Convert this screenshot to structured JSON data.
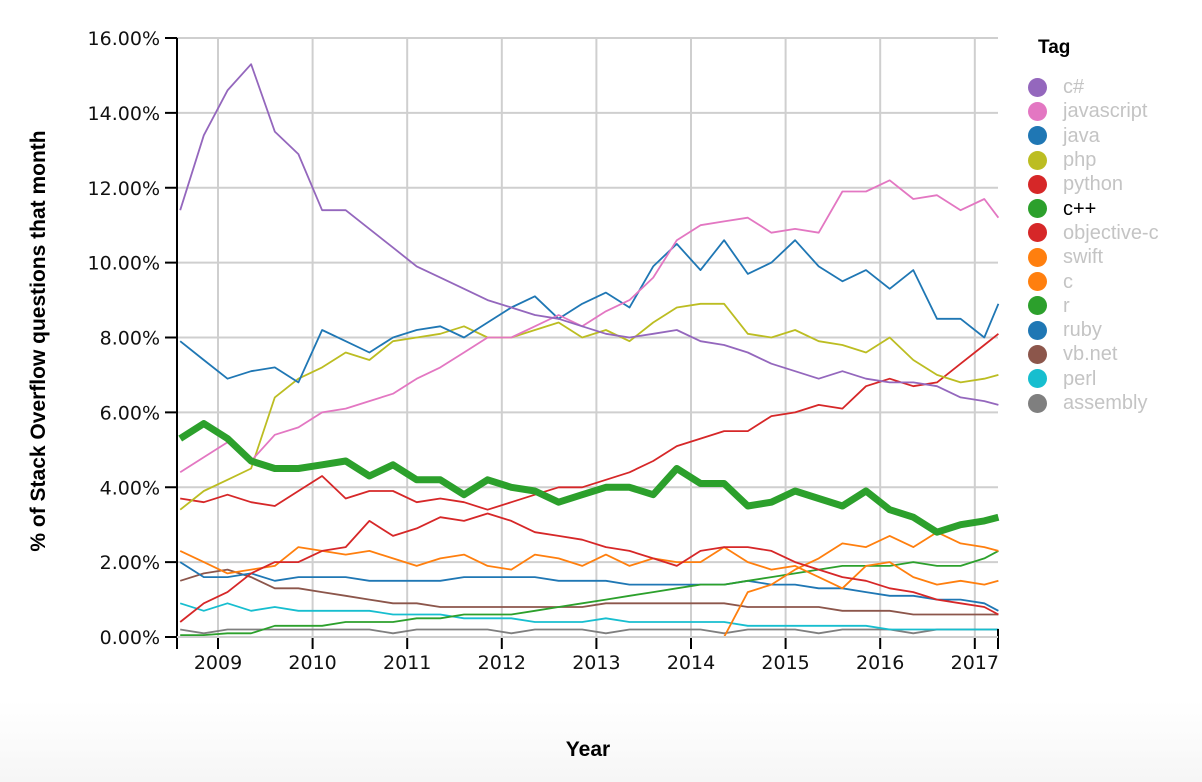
{
  "chart_data": {
    "type": "line",
    "title": "",
    "xlabel": "Year",
    "ylabel": "% of Stack Overflow questions that month",
    "ylim": [
      0,
      16
    ],
    "y_ticks": [
      "0.00%",
      "2.00%",
      "4.00%",
      "6.00%",
      "8.00%",
      "10.00%",
      "12.00%",
      "14.00%",
      "16.00%"
    ],
    "x_ticks": [
      "2009",
      "2010",
      "2011",
      "2012",
      "2013",
      "2014",
      "2015",
      "2016",
      "2017"
    ],
    "grid": true,
    "legend_position": "right",
    "legend_title": "Tag",
    "highlighted_series": "c++",
    "x": [
      2008.6,
      2008.85,
      2009.1,
      2009.35,
      2009.6,
      2009.85,
      2010.1,
      2010.35,
      2010.6,
      2010.85,
      2011.1,
      2011.35,
      2011.6,
      2011.85,
      2012.1,
      2012.35,
      2012.6,
      2012.85,
      2013.1,
      2013.35,
      2013.6,
      2013.85,
      2014.1,
      2014.35,
      2014.6,
      2014.85,
      2015.1,
      2015.35,
      2015.6,
      2015.85,
      2016.1,
      2016.35,
      2016.6,
      2016.85,
      2017.1,
      2017.25
    ],
    "series": [
      {
        "name": "c#",
        "color": "#9467bd",
        "values": [
          11.4,
          13.4,
          14.6,
          15.3,
          13.5,
          12.9,
          11.4,
          11.4,
          10.9,
          10.4,
          9.9,
          9.6,
          9.3,
          9.0,
          8.8,
          8.6,
          8.5,
          8.3,
          8.1,
          8.0,
          8.1,
          8.2,
          7.9,
          7.8,
          7.6,
          7.3,
          7.1,
          6.9,
          7.1,
          6.9,
          6.8,
          6.8,
          6.7,
          6.4,
          6.3,
          6.2
        ]
      },
      {
        "name": "javascript",
        "color": "#e377c2",
        "values": [
          4.4,
          4.8,
          5.2,
          4.7,
          5.4,
          5.6,
          6.0,
          6.1,
          6.3,
          6.5,
          6.9,
          7.2,
          7.6,
          8.0,
          8.0,
          8.3,
          8.6,
          8.3,
          8.7,
          9.0,
          9.6,
          10.6,
          11.0,
          11.1,
          11.2,
          10.8,
          10.9,
          10.8,
          11.9,
          11.9,
          12.2,
          11.7,
          11.8,
          11.4,
          11.7,
          11.2
        ]
      },
      {
        "name": "java",
        "color": "#1f77b4",
        "values": [
          7.9,
          7.4,
          6.9,
          7.1,
          7.2,
          6.8,
          8.2,
          7.9,
          7.6,
          8.0,
          8.2,
          8.3,
          8.0,
          8.4,
          8.8,
          9.1,
          8.5,
          8.9,
          9.2,
          8.8,
          9.9,
          10.5,
          9.8,
          10.6,
          9.7,
          10.0,
          10.6,
          9.9,
          9.5,
          9.8,
          9.3,
          9.8,
          8.5,
          8.5,
          8.0,
          8.9
        ]
      },
      {
        "name": "php",
        "color": "#bcbd22",
        "values": [
          3.4,
          3.9,
          4.2,
          4.5,
          6.4,
          6.9,
          7.2,
          7.6,
          7.4,
          7.9,
          8.0,
          8.1,
          8.3,
          8.0,
          8.0,
          8.2,
          8.4,
          8.0,
          8.2,
          7.9,
          8.4,
          8.8,
          8.9,
          8.9,
          8.1,
          8.0,
          8.2,
          7.9,
          7.8,
          7.6,
          8.0,
          7.4,
          7.0,
          6.8,
          6.9,
          7.0
        ]
      },
      {
        "name": "python",
        "color": "#d62728",
        "values": [
          3.7,
          3.6,
          3.8,
          3.6,
          3.5,
          3.9,
          4.3,
          3.7,
          3.9,
          3.9,
          3.6,
          3.7,
          3.6,
          3.4,
          3.6,
          3.8,
          4.0,
          4.0,
          4.2,
          4.4,
          4.7,
          5.1,
          5.3,
          5.5,
          5.5,
          5.9,
          6.0,
          6.2,
          6.1,
          6.7,
          6.9,
          6.7,
          6.8,
          7.3,
          7.8,
          8.1
        ]
      },
      {
        "name": "c++",
        "color": "#2ca02c",
        "values": [
          5.3,
          5.7,
          5.3,
          4.7,
          4.5,
          4.5,
          4.6,
          4.7,
          4.3,
          4.6,
          4.2,
          4.2,
          3.8,
          4.2,
          4.0,
          3.9,
          3.6,
          3.8,
          4.0,
          4.0,
          3.8,
          4.5,
          4.1,
          4.1,
          3.5,
          3.6,
          3.9,
          3.7,
          3.5,
          3.9,
          3.4,
          3.2,
          2.8,
          3.0,
          3.1,
          3.2
        ]
      },
      {
        "name": "objective-c",
        "color": "#d62728",
        "values": [
          0.4,
          0.9,
          1.2,
          1.7,
          2.0,
          2.0,
          2.3,
          2.4,
          3.1,
          2.7,
          2.9,
          3.2,
          3.1,
          3.3,
          3.1,
          2.8,
          2.7,
          2.6,
          2.4,
          2.3,
          2.1,
          1.9,
          2.3,
          2.4,
          2.4,
          2.3,
          2.0,
          1.8,
          1.6,
          1.5,
          1.3,
          1.2,
          1.0,
          0.9,
          0.8,
          0.6
        ]
      },
      {
        "name": "swift",
        "color": "#ff7f0e",
        "values": [
          0,
          0,
          0,
          0,
          0,
          0,
          0,
          0,
          0,
          0,
          0,
          0,
          0,
          0,
          0,
          0,
          0,
          0,
          0,
          0,
          0,
          0,
          0,
          0,
          1.2,
          1.4,
          1.8,
          2.1,
          2.5,
          2.4,
          2.7,
          2.4,
          2.8,
          2.5,
          2.4,
          2.3
        ]
      },
      {
        "name": "c",
        "color": "#ff7f0e",
        "values": [
          2.3,
          2.0,
          1.7,
          1.8,
          1.9,
          2.4,
          2.3,
          2.2,
          2.3,
          2.1,
          1.9,
          2.1,
          2.2,
          1.9,
          1.8,
          2.2,
          2.1,
          1.9,
          2.2,
          1.9,
          2.1,
          2.0,
          2.0,
          2.4,
          2.0,
          1.8,
          1.9,
          1.6,
          1.3,
          1.9,
          2.0,
          1.6,
          1.4,
          1.5,
          1.4,
          1.5
        ]
      },
      {
        "name": "r",
        "color": "#2ca02c",
        "values": [
          0.05,
          0.05,
          0.1,
          0.1,
          0.3,
          0.3,
          0.3,
          0.4,
          0.4,
          0.4,
          0.5,
          0.5,
          0.6,
          0.6,
          0.6,
          0.7,
          0.8,
          0.9,
          1.0,
          1.1,
          1.2,
          1.3,
          1.4,
          1.4,
          1.5,
          1.6,
          1.7,
          1.8,
          1.9,
          1.9,
          1.9,
          2.0,
          1.9,
          1.9,
          2.1,
          2.3
        ]
      },
      {
        "name": "ruby",
        "color": "#1f77b4",
        "values": [
          2.0,
          1.6,
          1.6,
          1.7,
          1.5,
          1.6,
          1.6,
          1.6,
          1.5,
          1.5,
          1.5,
          1.5,
          1.6,
          1.6,
          1.6,
          1.6,
          1.5,
          1.5,
          1.5,
          1.4,
          1.4,
          1.4,
          1.4,
          1.4,
          1.5,
          1.4,
          1.4,
          1.3,
          1.3,
          1.2,
          1.1,
          1.1,
          1.0,
          1.0,
          0.9,
          0.7
        ]
      },
      {
        "name": "vb.net",
        "color": "#8c564b",
        "values": [
          1.5,
          1.7,
          1.8,
          1.6,
          1.3,
          1.3,
          1.2,
          1.1,
          1.0,
          0.9,
          0.9,
          0.8,
          0.8,
          0.8,
          0.8,
          0.8,
          0.8,
          0.8,
          0.9,
          0.9,
          0.9,
          0.9,
          0.9,
          0.9,
          0.8,
          0.8,
          0.8,
          0.8,
          0.7,
          0.7,
          0.7,
          0.6,
          0.6,
          0.6,
          0.6,
          0.6
        ]
      },
      {
        "name": "perl",
        "color": "#17becf",
        "values": [
          0.9,
          0.7,
          0.9,
          0.7,
          0.8,
          0.7,
          0.7,
          0.7,
          0.7,
          0.6,
          0.6,
          0.6,
          0.5,
          0.5,
          0.5,
          0.4,
          0.4,
          0.4,
          0.5,
          0.4,
          0.4,
          0.4,
          0.4,
          0.4,
          0.3,
          0.3,
          0.3,
          0.3,
          0.3,
          0.3,
          0.2,
          0.2,
          0.2,
          0.2,
          0.2,
          0.2
        ]
      },
      {
        "name": "assembly",
        "color": "#7f7f7f",
        "values": [
          0.2,
          0.1,
          0.2,
          0.2,
          0.2,
          0.2,
          0.2,
          0.2,
          0.2,
          0.1,
          0.2,
          0.2,
          0.2,
          0.2,
          0.1,
          0.2,
          0.2,
          0.2,
          0.1,
          0.2,
          0.2,
          0.2,
          0.2,
          0.1,
          0.2,
          0.2,
          0.2,
          0.1,
          0.2,
          0.2,
          0.2,
          0.1,
          0.2,
          0.2,
          0.2,
          0.2
        ]
      }
    ]
  }
}
